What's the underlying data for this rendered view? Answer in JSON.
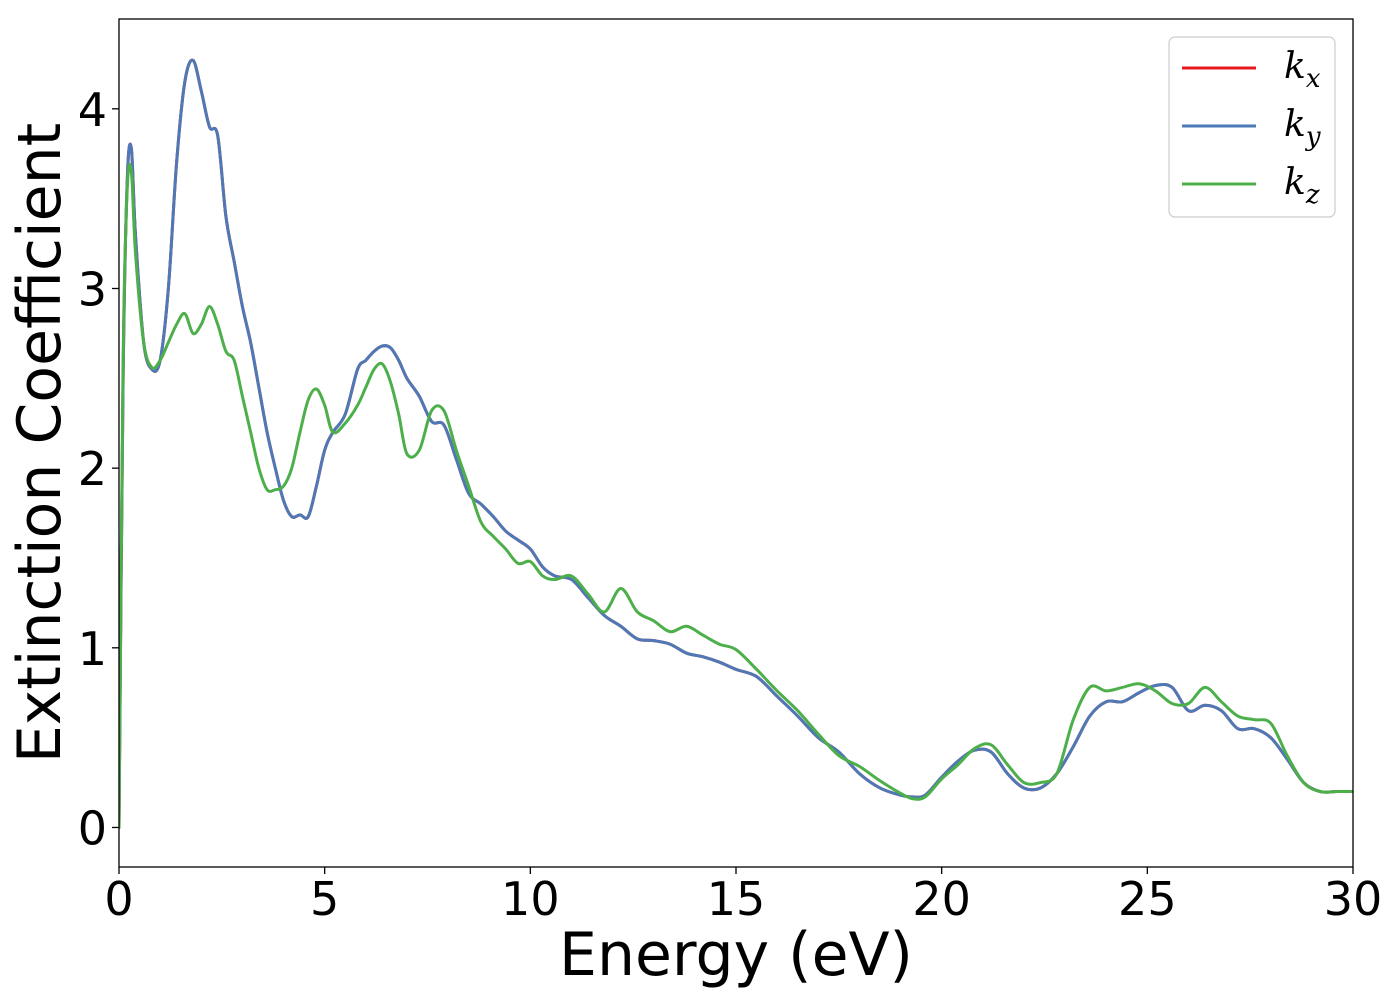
{
  "chart_data": {
    "type": "line",
    "title": "",
    "xlabel": "Energy (eV)",
    "ylabel": "Extinction Coefficient",
    "xlim": [
      0,
      30
    ],
    "ylim": [
      -0.22,
      4.5
    ],
    "xticks": [
      0,
      5,
      10,
      15,
      20,
      25,
      30
    ],
    "xtick_labels": [
      "0",
      "5",
      "10",
      "15",
      "20",
      "25",
      "30"
    ],
    "yticks": [
      0,
      1,
      2,
      3,
      4
    ],
    "ytick_labels": [
      "0",
      "1",
      "2",
      "3",
      "4"
    ],
    "grid": false,
    "legend_position": "top-right",
    "series": [
      {
        "name": "k_x",
        "legend_base": "k",
        "legend_sub": "x",
        "color": "#e41a1c",
        "x": [
          0,
          0.1,
          0.2,
          0.3,
          0.4,
          0.6,
          0.8,
          1.0,
          1.2,
          1.4,
          1.6,
          1.8,
          2.0,
          2.2,
          2.4,
          2.6,
          2.8,
          3.0,
          3.2,
          3.4,
          3.6,
          3.8,
          4.0,
          4.2,
          4.4,
          4.6,
          4.8,
          5.0,
          5.2,
          5.5,
          5.8,
          6.0,
          6.2,
          6.4,
          6.6,
          6.8,
          7.0,
          7.3,
          7.6,
          7.9,
          8.2,
          8.5,
          8.8,
          9.1,
          9.4,
          9.7,
          10.0,
          10.3,
          10.6,
          11.0,
          11.4,
          11.8,
          12.2,
          12.6,
          13.0,
          13.4,
          13.8,
          14.2,
          14.6,
          15.0,
          15.5,
          16.0,
          16.5,
          17.0,
          17.5,
          18.0,
          18.5,
          19.0,
          19.3,
          19.6,
          20.0,
          20.4,
          20.8,
          21.2,
          21.6,
          22.0,
          22.4,
          22.8,
          23.2,
          23.6,
          24.0,
          24.4,
          24.8,
          25.2,
          25.6,
          26.0,
          26.4,
          26.8,
          27.2,
          27.6,
          28.0,
          28.4,
          28.8,
          29.2,
          29.6,
          30.0
        ],
        "y": [
          0.0,
          2.5,
          3.6,
          3.78,
          3.3,
          2.7,
          2.55,
          2.6,
          3.0,
          3.7,
          4.15,
          4.27,
          4.1,
          3.9,
          3.85,
          3.4,
          3.15,
          2.9,
          2.7,
          2.45,
          2.2,
          2.0,
          1.82,
          1.73,
          1.74,
          1.73,
          1.9,
          2.1,
          2.2,
          2.3,
          2.55,
          2.6,
          2.65,
          2.68,
          2.67,
          2.6,
          2.5,
          2.4,
          2.26,
          2.24,
          2.05,
          1.86,
          1.8,
          1.73,
          1.65,
          1.6,
          1.55,
          1.45,
          1.4,
          1.38,
          1.28,
          1.18,
          1.12,
          1.05,
          1.04,
          1.02,
          0.97,
          0.95,
          0.92,
          0.88,
          0.84,
          0.73,
          0.62,
          0.5,
          0.42,
          0.3,
          0.22,
          0.18,
          0.17,
          0.18,
          0.28,
          0.37,
          0.43,
          0.42,
          0.3,
          0.22,
          0.22,
          0.3,
          0.45,
          0.62,
          0.7,
          0.7,
          0.75,
          0.79,
          0.78,
          0.65,
          0.68,
          0.65,
          0.55,
          0.55,
          0.5,
          0.38,
          0.25,
          0.2,
          0.2,
          0.2
        ]
      },
      {
        "name": "k_y",
        "legend_base": "k",
        "legend_sub": "y",
        "color": "#4e79b7",
        "x": [
          0,
          0.1,
          0.2,
          0.3,
          0.4,
          0.6,
          0.8,
          1.0,
          1.2,
          1.4,
          1.6,
          1.8,
          2.0,
          2.2,
          2.4,
          2.6,
          2.8,
          3.0,
          3.2,
          3.4,
          3.6,
          3.8,
          4.0,
          4.2,
          4.4,
          4.6,
          4.8,
          5.0,
          5.2,
          5.5,
          5.8,
          6.0,
          6.2,
          6.4,
          6.6,
          6.8,
          7.0,
          7.3,
          7.6,
          7.9,
          8.2,
          8.5,
          8.8,
          9.1,
          9.4,
          9.7,
          10.0,
          10.3,
          10.6,
          11.0,
          11.4,
          11.8,
          12.2,
          12.6,
          13.0,
          13.4,
          13.8,
          14.2,
          14.6,
          15.0,
          15.5,
          16.0,
          16.5,
          17.0,
          17.5,
          18.0,
          18.5,
          19.0,
          19.3,
          19.6,
          20.0,
          20.4,
          20.8,
          21.2,
          21.6,
          22.0,
          22.4,
          22.8,
          23.2,
          23.6,
          24.0,
          24.4,
          24.8,
          25.2,
          25.6,
          26.0,
          26.4,
          26.8,
          27.2,
          27.6,
          28.0,
          28.4,
          28.8,
          29.2,
          29.6,
          30.0
        ],
        "y": [
          0.0,
          2.5,
          3.6,
          3.78,
          3.3,
          2.7,
          2.55,
          2.6,
          3.0,
          3.7,
          4.15,
          4.27,
          4.1,
          3.9,
          3.85,
          3.4,
          3.15,
          2.9,
          2.7,
          2.45,
          2.2,
          2.0,
          1.82,
          1.73,
          1.74,
          1.73,
          1.9,
          2.1,
          2.2,
          2.3,
          2.55,
          2.6,
          2.65,
          2.68,
          2.67,
          2.6,
          2.5,
          2.4,
          2.26,
          2.24,
          2.05,
          1.86,
          1.8,
          1.73,
          1.65,
          1.6,
          1.55,
          1.45,
          1.4,
          1.38,
          1.28,
          1.18,
          1.12,
          1.05,
          1.04,
          1.02,
          0.97,
          0.95,
          0.92,
          0.88,
          0.84,
          0.73,
          0.62,
          0.5,
          0.42,
          0.3,
          0.22,
          0.18,
          0.17,
          0.18,
          0.28,
          0.37,
          0.43,
          0.42,
          0.3,
          0.22,
          0.22,
          0.3,
          0.45,
          0.62,
          0.7,
          0.7,
          0.75,
          0.79,
          0.78,
          0.65,
          0.68,
          0.65,
          0.55,
          0.55,
          0.5,
          0.38,
          0.25,
          0.2,
          0.2,
          0.2
        ]
      },
      {
        "name": "k_z",
        "legend_base": "k",
        "legend_sub": "z",
        "color": "#4daf4a",
        "x": [
          0,
          0.1,
          0.2,
          0.3,
          0.4,
          0.6,
          0.8,
          1.0,
          1.2,
          1.4,
          1.6,
          1.8,
          2.0,
          2.2,
          2.4,
          2.6,
          2.8,
          3.0,
          3.2,
          3.4,
          3.6,
          3.8,
          4.0,
          4.2,
          4.4,
          4.6,
          4.8,
          5.0,
          5.2,
          5.5,
          5.8,
          6.0,
          6.2,
          6.4,
          6.6,
          6.8,
          7.0,
          7.3,
          7.6,
          7.9,
          8.2,
          8.5,
          8.8,
          9.1,
          9.4,
          9.7,
          10.0,
          10.3,
          10.6,
          11.0,
          11.4,
          11.8,
          12.2,
          12.6,
          13.0,
          13.4,
          13.8,
          14.2,
          14.6,
          15.0,
          15.5,
          16.0,
          16.5,
          17.0,
          17.5,
          18.0,
          18.5,
          19.0,
          19.3,
          19.6,
          20.0,
          20.4,
          20.8,
          21.2,
          21.6,
          22.0,
          22.4,
          22.8,
          23.2,
          23.6,
          24.0,
          24.4,
          24.8,
          25.2,
          25.6,
          26.0,
          26.4,
          26.8,
          27.2,
          27.6,
          28.0,
          28.4,
          28.8,
          29.2,
          29.6,
          30.0
        ],
        "y": [
          0.0,
          2.6,
          3.55,
          3.65,
          3.2,
          2.7,
          2.56,
          2.6,
          2.7,
          2.8,
          2.86,
          2.75,
          2.8,
          2.9,
          2.8,
          2.65,
          2.6,
          2.4,
          2.2,
          2.0,
          1.88,
          1.88,
          1.9,
          2.0,
          2.2,
          2.38,
          2.44,
          2.35,
          2.2,
          2.25,
          2.35,
          2.45,
          2.55,
          2.58,
          2.48,
          2.3,
          2.08,
          2.1,
          2.32,
          2.32,
          2.1,
          1.9,
          1.7,
          1.62,
          1.55,
          1.47,
          1.48,
          1.4,
          1.38,
          1.4,
          1.3,
          1.2,
          1.33,
          1.2,
          1.15,
          1.09,
          1.12,
          1.07,
          1.02,
          0.99,
          0.88,
          0.76,
          0.65,
          0.52,
          0.4,
          0.34,
          0.26,
          0.19,
          0.16,
          0.17,
          0.27,
          0.35,
          0.44,
          0.46,
          0.35,
          0.25,
          0.25,
          0.3,
          0.6,
          0.78,
          0.76,
          0.78,
          0.8,
          0.76,
          0.69,
          0.69,
          0.78,
          0.7,
          0.62,
          0.6,
          0.58,
          0.4,
          0.25,
          0.2,
          0.2,
          0.2
        ]
      }
    ]
  }
}
